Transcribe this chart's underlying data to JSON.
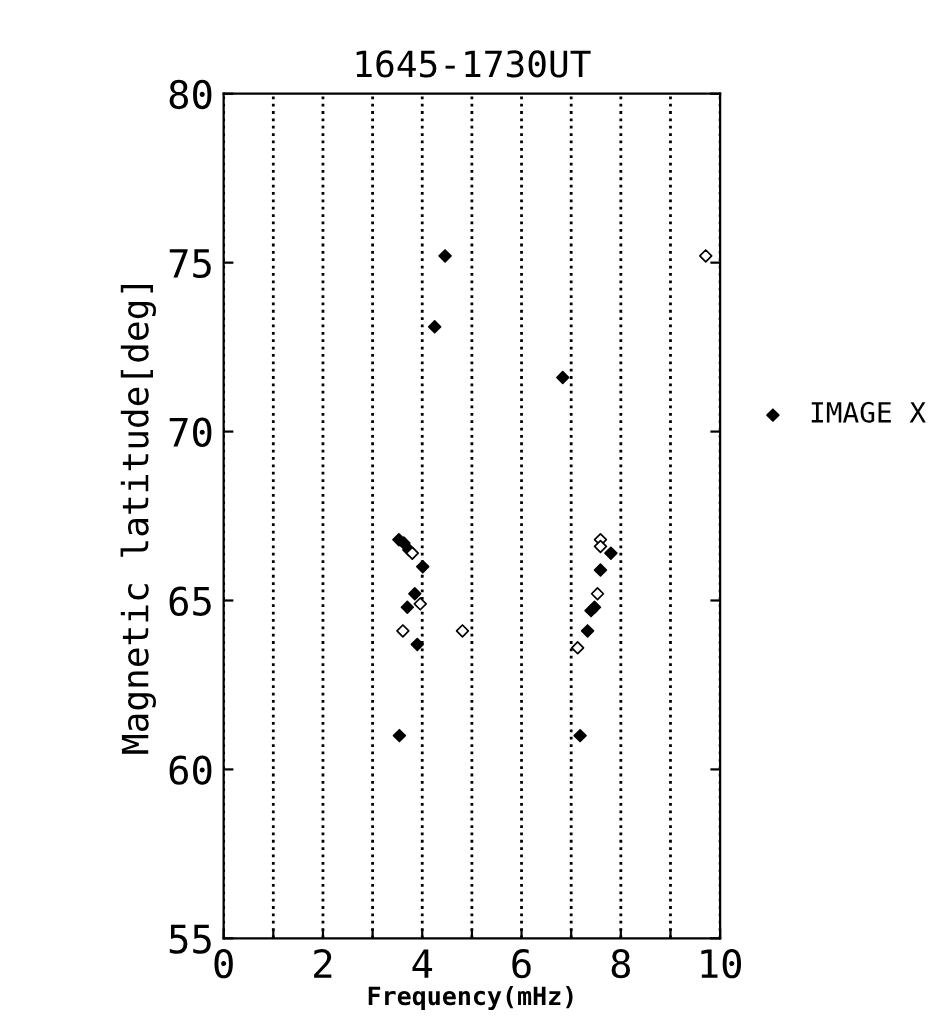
{
  "chart_data": {
    "type": "scatter",
    "title": "1645-1730UT",
    "xlabel": "Frequency(mHz)",
    "ylabel": "Magnetic latitude[deg]",
    "xlim": [
      0,
      10
    ],
    "ylim": [
      55,
      80
    ],
    "xticks": [
      0,
      {
        "value": 1,
        "label": null
      },
      2,
      {
        "value": 3,
        "label": null
      },
      4,
      {
        "value": 5,
        "label": null
      },
      6,
      {
        "value": 7,
        "label": null
      },
      8,
      {
        "value": 9,
        "label": null
      },
      10
    ],
    "yticks": [
      55,
      60,
      65,
      70,
      75,
      80
    ],
    "grid": "x",
    "legend": "right",
    "marker": "diamond",
    "series": [
      {
        "name": "IMAGE X",
        "color": "#000000",
        "x": [
          4.46,
          4.25,
          6.83,
          3.53,
          3.63,
          3.73,
          4.01,
          3.85,
          3.7,
          3.9,
          3.54,
          7.8,
          7.59,
          7.47,
          7.4,
          7.33,
          7.18
        ],
        "values": [
          75.2,
          73.1,
          71.6,
          66.8,
          66.7,
          66.5,
          66.0,
          65.2,
          64.8,
          63.7,
          61.0,
          66.4,
          65.9,
          64.8,
          64.7,
          64.1,
          61.0
        ]
      },
      {
        "color": "#ffffff",
        "x": [
          9.71,
          3.8,
          3.96,
          3.61,
          4.81,
          7.59,
          7.59,
          7.53,
          7.13
        ],
        "values": [
          75.2,
          66.4,
          64.9,
          64.1,
          64.1,
          66.8,
          66.6,
          65.2,
          63.6
        ]
      }
    ]
  }
}
